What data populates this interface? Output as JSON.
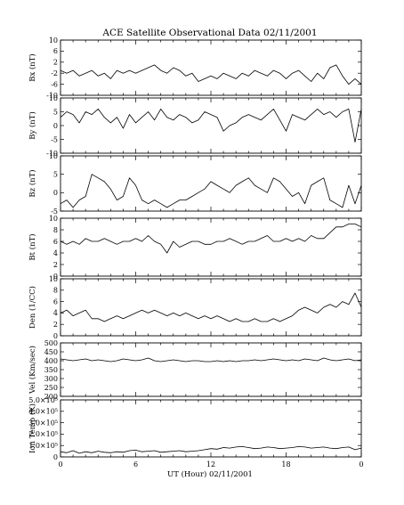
{
  "title": "ACE Satellite Observational Data   02/11/2001",
  "xlabel": "UT (Hour)   02/11/2001",
  "x_ticks": [
    "0",
    "6",
    "12",
    "18",
    "0"
  ],
  "chart_data": [
    {
      "type": "line",
      "ylabel": "Bx (nT)",
      "ylim": [
        -10,
        10
      ],
      "yticks": [
        "10",
        "6",
        "2",
        "-2",
        "-6",
        "-10"
      ],
      "x": [
        0,
        0.5,
        1,
        1.5,
        2,
        2.5,
        3,
        3.5,
        4,
        4.5,
        5,
        5.5,
        6,
        6.5,
        7,
        7.5,
        8,
        8.5,
        9,
        9.5,
        10,
        10.5,
        11,
        11.5,
        12,
        12.5,
        13,
        13.5,
        14,
        14.5,
        15,
        15.5,
        16,
        16.5,
        17,
        17.5,
        18,
        18.5,
        19,
        19.5,
        20,
        20.5,
        21,
        21.5,
        22,
        22.5,
        23,
        23.5,
        24
      ],
      "values": [
        -1,
        -2,
        -1,
        -3,
        -2,
        -1,
        -3,
        -2,
        -4,
        -1,
        -2,
        -1,
        -2,
        -1,
        0,
        1,
        -1,
        -2,
        0,
        -1,
        -3,
        -2,
        -5,
        -4,
        -3,
        -4,
        -2,
        -3,
        -4,
        -2,
        -3,
        -1,
        -2,
        -3,
        -1,
        -2,
        -4,
        -2,
        -1,
        -3,
        -5,
        -2,
        -4,
        0,
        1,
        -3,
        -6,
        -4,
        -6
      ]
    },
    {
      "type": "line",
      "ylabel": "By (nT)",
      "ylim": [
        -10,
        10
      ],
      "yticks": [
        "10",
        "5",
        "0",
        "-5",
        "-10"
      ],
      "x": [
        0,
        0.5,
        1,
        1.5,
        2,
        2.5,
        3,
        3.5,
        4,
        4.5,
        5,
        5.5,
        6,
        6.5,
        7,
        7.5,
        8,
        8.5,
        9,
        9.5,
        10,
        10.5,
        11,
        11.5,
        12,
        12.5,
        13,
        13.5,
        14,
        14.5,
        15,
        15.5,
        16,
        16.5,
        17,
        17.5,
        18,
        18.5,
        19,
        19.5,
        20,
        20.5,
        21,
        21.5,
        22,
        22.5,
        23,
        23.5,
        24
      ],
      "values": [
        3,
        5,
        4,
        1,
        5,
        4,
        6,
        3,
        1,
        3,
        -1,
        4,
        1,
        3,
        5,
        2,
        6,
        3,
        2,
        4,
        3,
        1,
        2,
        5,
        4,
        3,
        -2,
        0,
        1,
        3,
        4,
        3,
        2,
        4,
        6,
        2,
        -2,
        4,
        3,
        2,
        4,
        6,
        4,
        5,
        3,
        5,
        6,
        -6,
        6
      ]
    },
    {
      "type": "line",
      "ylabel": "Bz (nT)",
      "ylim": [
        -5,
        10
      ],
      "yticks": [
        "10",
        "5",
        "0",
        "-5"
      ],
      "x": [
        0,
        0.5,
        1,
        1.5,
        2,
        2.5,
        3,
        3.5,
        4,
        4.5,
        5,
        5.5,
        6,
        6.5,
        7,
        7.5,
        8,
        8.5,
        9,
        9.5,
        10,
        10.5,
        11,
        11.5,
        12,
        12.5,
        13,
        13.5,
        14,
        14.5,
        15,
        15.5,
        16,
        16.5,
        17,
        17.5,
        18,
        18.5,
        19,
        19.5,
        20,
        20.5,
        21,
        21.5,
        22,
        22.5,
        23,
        23.5,
        24
      ],
      "values": [
        -3,
        -2,
        -4,
        -2,
        -1,
        5,
        4,
        3,
        1,
        -2,
        -1,
        4,
        2,
        -2,
        -3,
        -2,
        -3,
        -4,
        -3,
        -2,
        -2,
        -1,
        0,
        1,
        3,
        2,
        1,
        0,
        2,
        3,
        4,
        2,
        1,
        0,
        4,
        3,
        1,
        -1,
        0,
        -3,
        2,
        3,
        4,
        -2,
        -3,
        -4,
        2,
        -3,
        2
      ]
    },
    {
      "type": "line",
      "ylabel": "Bt (nT)",
      "ylim": [
        0,
        10
      ],
      "yticks": [
        "10",
        "8",
        "6",
        "4",
        "2",
        "0"
      ],
      "x": [
        0,
        0.5,
        1,
        1.5,
        2,
        2.5,
        3,
        3.5,
        4,
        4.5,
        5,
        5.5,
        6,
        6.5,
        7,
        7.5,
        8,
        8.5,
        9,
        9.5,
        10,
        10.5,
        11,
        11.5,
        12,
        12.5,
        13,
        13.5,
        14,
        14.5,
        15,
        15.5,
        16,
        16.5,
        17,
        17.5,
        18,
        18.5,
        19,
        19.5,
        20,
        20.5,
        21,
        21.5,
        22,
        22.5,
        23,
        23.5,
        24
      ],
      "values": [
        6,
        5.5,
        6,
        5.5,
        6.5,
        6,
        6,
        6.5,
        6,
        5.5,
        6,
        6,
        6.5,
        6,
        7,
        6,
        5.5,
        4,
        6,
        5,
        5.5,
        6,
        6,
        5.5,
        5.5,
        6,
        6,
        6.5,
        6,
        5.5,
        6,
        6,
        6.5,
        7,
        6,
        6,
        6.5,
        6,
        6.5,
        6,
        7,
        6.5,
        6.5,
        7.5,
        8.5,
        8.5,
        9,
        9,
        8.5
      ]
    },
    {
      "type": "line",
      "ylabel": "Den (1/CC)",
      "ylim": [
        0,
        10
      ],
      "yticks": [
        "10",
        "8",
        "6",
        "4",
        "2",
        "0"
      ],
      "x": [
        0,
        0.5,
        1,
        1.5,
        2,
        2.5,
        3,
        3.5,
        4,
        4.5,
        5,
        5.5,
        6,
        6.5,
        7,
        7.5,
        8,
        8.5,
        9,
        9.5,
        10,
        10.5,
        11,
        11.5,
        12,
        12.5,
        13,
        13.5,
        14,
        14.5,
        15,
        15.5,
        16,
        16.5,
        17,
        17.5,
        18,
        18.5,
        19,
        19.5,
        20,
        20.5,
        21,
        21.5,
        22,
        22.5,
        23,
        23.5,
        24
      ],
      "values": [
        4,
        4.5,
        3.5,
        4,
        4.5,
        3,
        3,
        2.5,
        3,
        3.5,
        3,
        3.5,
        4,
        4.5,
        4,
        4.5,
        4,
        3.5,
        4,
        3.5,
        4,
        3.5,
        3,
        3.5,
        3,
        3.5,
        3,
        2.5,
        3,
        2.5,
        2.5,
        3,
        2.5,
        2.5,
        3,
        2.5,
        3,
        3.5,
        4.5,
        5,
        4.5,
        4,
        5,
        5.5,
        5,
        6,
        5.5,
        7.5,
        5
      ]
    },
    {
      "type": "line",
      "ylabel": "Vel (Km/sec)",
      "ylim": [
        200,
        500
      ],
      "yticks": [
        "500",
        "450",
        "400",
        "350",
        "300",
        "250",
        "200"
      ],
      "x": [
        0,
        0.5,
        1,
        1.5,
        2,
        2.5,
        3,
        3.5,
        4,
        4.5,
        5,
        5.5,
        6,
        6.5,
        7,
        7.5,
        8,
        8.5,
        9,
        9.5,
        10,
        10.5,
        11,
        11.5,
        12,
        12.5,
        13,
        13.5,
        14,
        14.5,
        15,
        15.5,
        16,
        16.5,
        17,
        17.5,
        18,
        18.5,
        19,
        19.5,
        20,
        20.5,
        21,
        21.5,
        22,
        22.5,
        23,
        23.5,
        24
      ],
      "values": [
        410,
        405,
        400,
        405,
        410,
        400,
        405,
        400,
        395,
        400,
        410,
        405,
        400,
        405,
        415,
        400,
        395,
        400,
        405,
        400,
        395,
        400,
        400,
        395,
        395,
        400,
        395,
        400,
        395,
        400,
        400,
        405,
        400,
        405,
        410,
        405,
        400,
        405,
        400,
        410,
        405,
        400,
        415,
        405,
        400,
        405,
        410,
        400,
        405
      ]
    },
    {
      "type": "line",
      "ylabel": "Ion Temp (K)",
      "ylim": [
        0,
        550000
      ],
      "yticks": [
        "5.0×10⁵",
        "4.0×10⁵",
        "3.0×10⁵",
        "2.0×10⁵",
        "1.0×10⁵",
        "0"
      ],
      "x": [
        0,
        0.5,
        1,
        1.5,
        2,
        2.5,
        3,
        3.5,
        4,
        4.5,
        5,
        5.5,
        6,
        6.5,
        7,
        7.5,
        8,
        8.5,
        9,
        9.5,
        10,
        10.5,
        11,
        11.5,
        12,
        12.5,
        13,
        13.5,
        14,
        14.5,
        15,
        15.5,
        16,
        16.5,
        17,
        17.5,
        18,
        18.5,
        19,
        19.5,
        20,
        20.5,
        21,
        21.5,
        22,
        22.5,
        23,
        23.5,
        24
      ],
      "values": [
        50000,
        40000,
        60000,
        35000,
        50000,
        40000,
        55000,
        45000,
        40000,
        50000,
        45000,
        60000,
        65000,
        50000,
        55000,
        60000,
        45000,
        50000,
        55000,
        60000,
        50000,
        55000,
        60000,
        70000,
        80000,
        75000,
        90000,
        85000,
        95000,
        100000,
        90000,
        80000,
        85000,
        95000,
        90000,
        80000,
        85000,
        90000,
        100000,
        95000,
        85000,
        90000,
        95000,
        85000,
        80000,
        90000,
        95000,
        70000,
        85000
      ]
    }
  ]
}
